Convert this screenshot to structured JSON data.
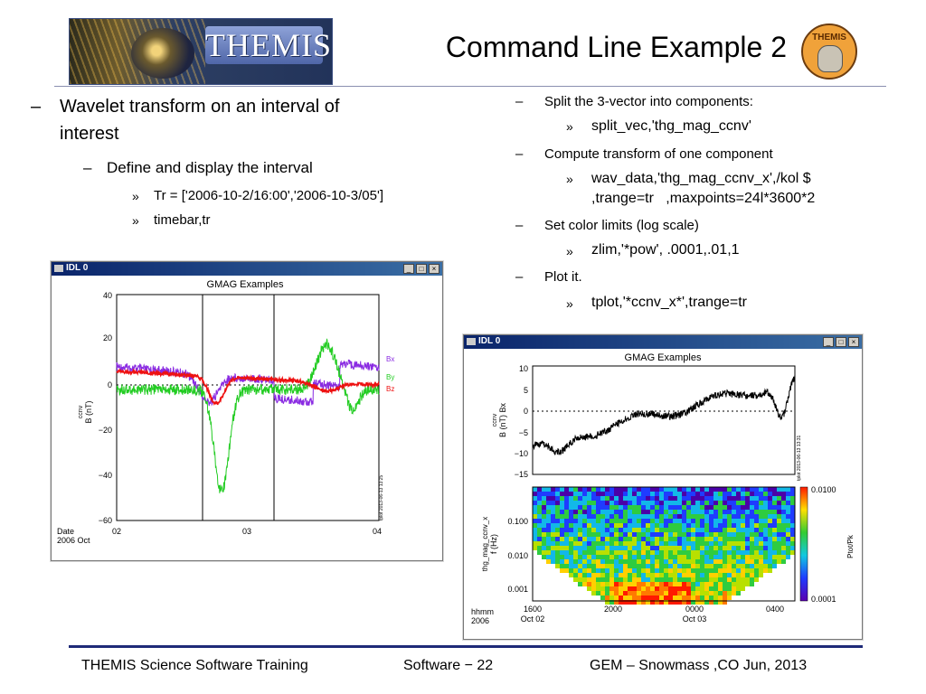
{
  "header": {
    "logo_text": "THEMIS",
    "title": "Command Line Example 2",
    "badge_text": "THEMIS"
  },
  "left": {
    "b1_marker": "–",
    "b1": "Wavelet transform on an interval of",
    "b1b": "interest",
    "b2_marker": "–",
    "b2": "Define and display the interval",
    "b3_marker": "»",
    "b3": "Tr = ['2006-10-2/16:00','2006-10-3/05']",
    "b4_marker": "»",
    "b4": "timebar,tr"
  },
  "right": {
    "r1_marker": "–",
    "r1": "Split the 3-vector into components:",
    "r2_marker": "»",
    "r2": "split_vec,'thg_mag_ccnv'",
    "r3_marker": "–",
    "r3": "Compute transform of one component",
    "r4_marker": "»",
    "r4": "wav_data,'thg_mag_ccnv_x',/kol $",
    "r4b": ",trange=tr   ,maxpoints=24l*3600*2",
    "r5_marker": "–",
    "r5": "Set color limits (log scale)",
    "r6_marker": "»",
    "r6": "zlim,'*pow', .0001,.01,1",
    "r7_marker": "–",
    "r7": "Plot it.",
    "r8_marker": "»",
    "r8": "tplot,'*ccnv_x*',trange=tr"
  },
  "window1": {
    "titlebar": "IDL 0",
    "btn_min": "_",
    "btn_max": "□",
    "btn_close": "×",
    "plot_title": "GMAG Examples",
    "ylabel": "B (nT)",
    "ylabel_sup": "ccnv",
    "yticks": [
      "40",
      "20",
      "0",
      "−20",
      "−40",
      "−60"
    ],
    "xticks": [
      "02",
      "03",
      "04"
    ],
    "date_label": "Date",
    "date_value": "2006 Oct",
    "legend": [
      {
        "name": "Bx",
        "color": "#8a2be2"
      },
      {
        "name": "By",
        "color": "#22cc22"
      },
      {
        "name": "Bz",
        "color": "#ee1111"
      }
    ],
    "stamp": "tplot 2013-06-13 13:25"
  },
  "window2": {
    "titlebar": "IDL 0",
    "btn_min": "_",
    "btn_max": "□",
    "btn_close": "×",
    "plot_title": "GMAG Examples",
    "ylabel1": "B (nT) Bx",
    "ylabel1_sup": "ccnv",
    "yticks1": [
      "10",
      "5",
      "0",
      "−5",
      "−10",
      "−15"
    ],
    "ylabel2": "f (Hz)",
    "ylabel2_sup": "thg_mag_ccnv_x",
    "yticks2": [
      "0.100",
      "0.010",
      "0.001"
    ],
    "cbar_top": "0.0100",
    "cbar_bottom": "0.0001",
    "cbar_label": "Ptot/Pk",
    "xrow1": [
      "1600",
      "2000",
      "0000",
      "0400"
    ],
    "xrow2": [
      "Oct 02",
      "Oct 03"
    ],
    "xlabel1": "hhmm",
    "xlabel2": "2006",
    "stamp": "tplot 2013-06-13 13:31"
  },
  "footer": {
    "left": "THEMIS Science Software Training",
    "center": "Software − 22",
    "right": "GEM – Snowmass ,CO  Jun, 2013"
  },
  "colors": {
    "accent_line": "#1e2a78",
    "titlebar": "#0a246a"
  }
}
